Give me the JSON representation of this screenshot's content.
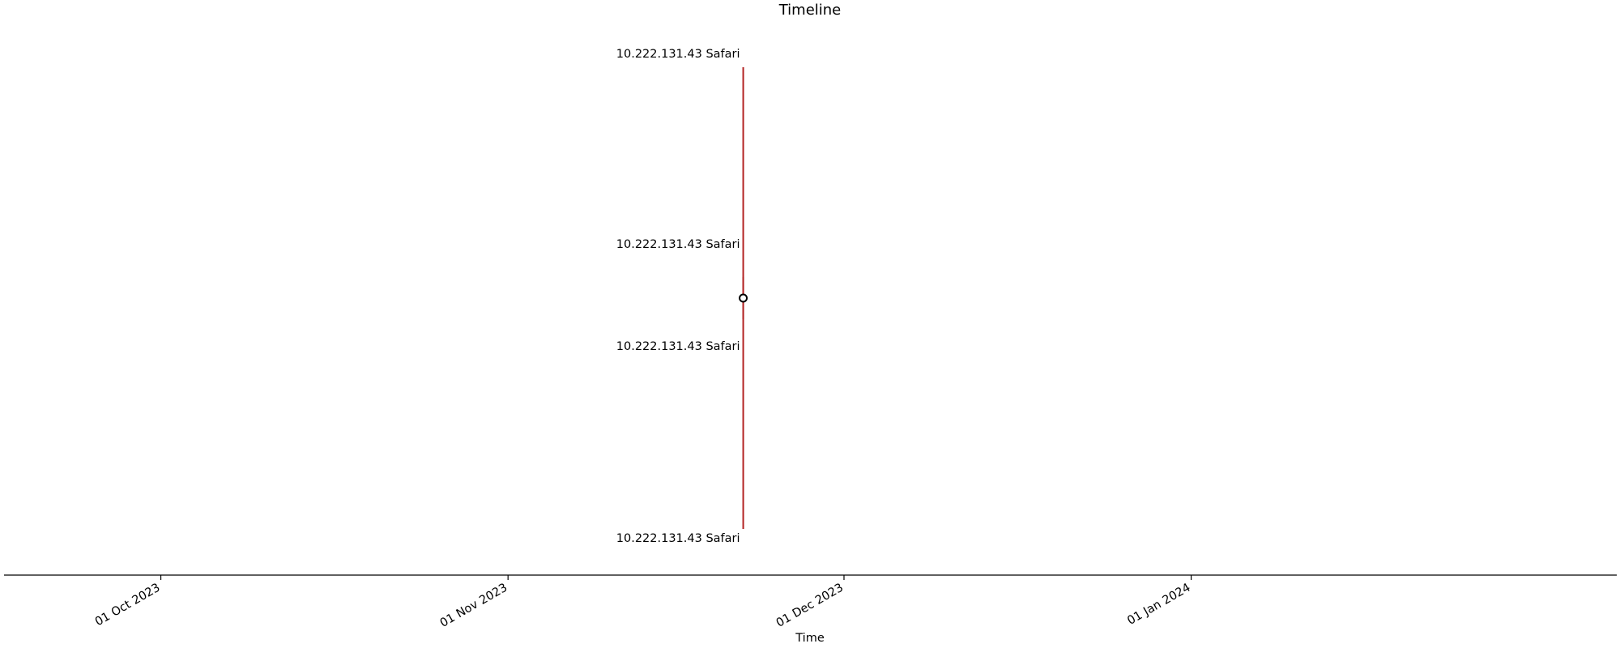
{
  "chart_data": {
    "type": "timeline",
    "title": "Timeline",
    "xlabel": "Time",
    "x_axis": {
      "scale": "date",
      "range": [
        "2023-09-17",
        "2024-02-08"
      ],
      "ticks": [
        {
          "date": "2023-10-01",
          "label": "01 Oct 2023"
        },
        {
          "date": "2023-11-01",
          "label": "01 Nov 2023"
        },
        {
          "date": "2023-12-01",
          "label": "01 Dec 2023"
        },
        {
          "date": "2024-01-01",
          "label": "01 Jan 2024"
        }
      ]
    },
    "marker": {
      "date": "2023-11-22"
    },
    "stem_color": "#b22222",
    "events": [
      {
        "date": "2023-11-22",
        "level": 5,
        "label": "10.222.131.43 Safari"
      },
      {
        "date": "2023-11-22",
        "level": 1,
        "label": "10.222.131.43 Safari"
      },
      {
        "date": "2023-11-22",
        "level": -1,
        "label": "10.222.131.43 Safari"
      },
      {
        "date": "2023-11-22",
        "level": -5,
        "label": "10.222.131.43 Safari"
      }
    ],
    "grid": false,
    "legend": "none"
  }
}
